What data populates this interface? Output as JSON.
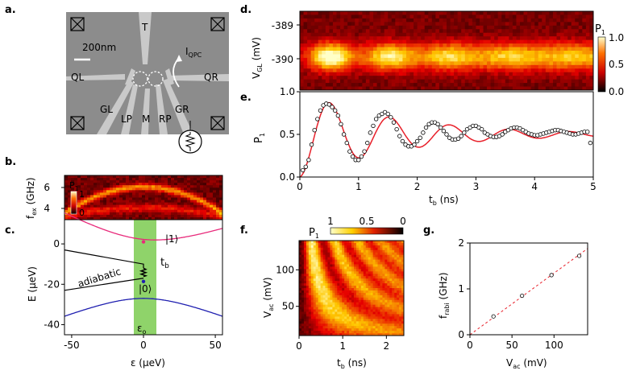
{
  "panels": {
    "a": {
      "label": "a.",
      "scale_bar": "200nm",
      "gate_labels": {
        "T": "T",
        "QL": "QL",
        "QR": "QR",
        "GL": "GL",
        "LP": "LP",
        "M": "M",
        "RP": "RP",
        "GR": "GR"
      },
      "current_label": "I",
      "current_sub": "QPC"
    },
    "b": {
      "label": "b.",
      "ylabel": "f",
      "ylabel_sub": "ex",
      "ylabel_unit": " (GHz)",
      "yticks": [
        "6",
        "4"
      ],
      "cbar_title": "P",
      "cbar_sub": "1",
      "cbar_ticks": [
        "1",
        "0"
      ]
    },
    "c": {
      "label": "c.",
      "ylabel": "E (μeV)",
      "xlabel": "ε (μeV)",
      "yticks": [
        "0",
        "-20",
        "-40"
      ],
      "xticks": [
        "-50",
        "0",
        "50"
      ],
      "state1": "|1⟩",
      "state0": "|0⟩",
      "adiabatic": "adiabatic",
      "tb": "t",
      "tb_sub": "b",
      "eps0": "ε",
      "eps0_sub": "o"
    },
    "d": {
      "label": "d.",
      "ylabel": "V",
      "ylabel_sub": "GL",
      "ylabel_unit": " (mV)",
      "yticks": [
        "-389",
        "-390"
      ],
      "cbar_title": "P",
      "cbar_sub": "1",
      "cbar_ticks": [
        "1.0",
        "0.5",
        "0.0"
      ]
    },
    "e": {
      "label": "e.",
      "ylabel": "P",
      "ylabel_sub": "1",
      "xlabel": "t",
      "xlabel_sub": "b",
      "xlabel_unit": " (ns)",
      "yticks": [
        "1.0",
        "0.5",
        "0.0"
      ],
      "xticks": [
        "0",
        "1",
        "2",
        "3",
        "4",
        "5"
      ]
    },
    "f": {
      "label": "f.",
      "ylabel": "V",
      "ylabel_sub": "ac",
      "ylabel_unit": " (mV)",
      "xlabel": "t",
      "xlabel_sub": "b",
      "xlabel_unit": " (ns)",
      "yticks": [
        "100",
        "50"
      ],
      "xticks": [
        "0",
        "1",
        "2"
      ],
      "cbar_title": "P",
      "cbar_sub": "1",
      "cbar_ticks": [
        "1",
        "0.5",
        "0"
      ]
    },
    "g": {
      "label": "g.",
      "ylabel": "f",
      "ylabel_sub": "rabi",
      "ylabel_unit": " (GHz)",
      "xlabel": "V",
      "xlabel_sub": "ac",
      "xlabel_unit": " (mV)",
      "yticks": [
        "2",
        "1",
        "0"
      ],
      "xticks": [
        "0",
        "50",
        "100"
      ]
    }
  },
  "colors": {
    "hot_dark": "#000000",
    "hot_red": "#cc0000",
    "hot_yellow": "#ffff00",
    "fit": "#e8202a",
    "state1": "#e8297a",
    "state0": "#1f1fb0",
    "band": "#8fd36a",
    "sem_bg": "#8a8a8a"
  },
  "chart_data": [
    {
      "id": "e",
      "type": "scatter",
      "title": "",
      "xlabel": "t_b (ns)",
      "ylabel": "P_1",
      "xlim": [
        0,
        5
      ],
      "ylim": [
        0,
        1
      ],
      "series": [
        {
          "name": "data",
          "x": [
            0.05,
            0.1,
            0.15,
            0.2,
            0.25,
            0.3,
            0.35,
            0.4,
            0.45,
            0.5,
            0.55,
            0.6,
            0.65,
            0.7,
            0.75,
            0.8,
            0.85,
            0.9,
            0.95,
            1.0,
            1.05,
            1.1,
            1.15,
            1.2,
            1.25,
            1.3,
            1.35,
            1.4,
            1.45,
            1.5,
            1.55,
            1.6,
            1.65,
            1.7,
            1.75,
            1.8,
            1.85,
            1.9,
            1.95,
            2.0,
            2.05,
            2.1,
            2.15,
            2.2,
            2.25,
            2.3,
            2.35,
            2.4,
            2.45,
            2.5,
            2.55,
            2.6,
            2.65,
            2.7,
            2.75,
            2.8,
            2.85,
            2.9,
            2.95,
            3.0,
            3.05,
            3.1,
            3.15,
            3.2,
            3.25,
            3.3,
            3.35,
            3.4,
            3.45,
            3.5,
            3.55,
            3.6,
            3.65,
            3.7,
            3.75,
            3.8,
            3.85,
            3.9,
            3.95,
            4.0,
            4.05,
            4.1,
            4.15,
            4.2,
            4.25,
            4.3,
            4.35,
            4.4,
            4.45,
            4.5,
            4.55,
            4.6,
            4.65,
            4.7,
            4.75,
            4.8,
            4.85,
            4.9,
            4.95
          ],
          "y": [
            0.08,
            0.12,
            0.2,
            0.38,
            0.55,
            0.68,
            0.78,
            0.84,
            0.86,
            0.85,
            0.82,
            0.78,
            0.72,
            0.62,
            0.5,
            0.4,
            0.3,
            0.24,
            0.2,
            0.2,
            0.24,
            0.3,
            0.4,
            0.52,
            0.6,
            0.68,
            0.72,
            0.74,
            0.76,
            0.74,
            0.7,
            0.64,
            0.56,
            0.48,
            0.42,
            0.38,
            0.36,
            0.36,
            0.38,
            0.42,
            0.46,
            0.52,
            0.58,
            0.62,
            0.64,
            0.64,
            0.62,
            0.58,
            0.54,
            0.5,
            0.46,
            0.44,
            0.44,
            0.45,
            0.48,
            0.52,
            0.56,
            0.58,
            0.6,
            0.6,
            0.58,
            0.56,
            0.52,
            0.5,
            0.48,
            0.47,
            0.47,
            0.48,
            0.5,
            0.53,
            0.55,
            0.57,
            0.58,
            0.58,
            0.57,
            0.55,
            0.53,
            0.51,
            0.5,
            0.49,
            0.49,
            0.5,
            0.51,
            0.52,
            0.53,
            0.54,
            0.55,
            0.55,
            0.54,
            0.53,
            0.52,
            0.51,
            0.5,
            0.5,
            0.51,
            0.52,
            0.53,
            0.53,
            0.4
          ]
        },
        {
          "name": "fit",
          "fit": {
            "A": 0.5,
            "omega_per_ns": 6.15,
            "decay_ns": 1.7,
            "offset": 0.5
          }
        }
      ]
    },
    {
      "id": "g",
      "type": "scatter",
      "title": "",
      "xlabel": "V_ac (mV)",
      "ylabel": "f_rabi (GHz)",
      "xlim": [
        0,
        140
      ],
      "ylim": [
        0,
        2
      ],
      "series": [
        {
          "name": "data",
          "x": [
            28,
            62,
            97,
            130
          ],
          "y": [
            0.4,
            0.85,
            1.3,
            1.72
          ]
        },
        {
          "name": "linear fit",
          "x": [
            0,
            140
          ],
          "y": [
            0,
            1.88
          ]
        }
      ]
    },
    {
      "id": "c",
      "type": "line",
      "title": "",
      "xlabel": "ε (μeV)",
      "ylabel": "E (μeV)",
      "xlim": [
        -55,
        55
      ],
      "ylim": [
        -45,
        12
      ],
      "series": [
        {
          "name": "|1⟩",
          "half_gap": 18
        },
        {
          "name": "|0⟩",
          "half_gap": 18
        },
        {
          "name": "adiabatic"
        }
      ]
    },
    {
      "id": "d",
      "type": "heatmap",
      "title": "",
      "xlabel": "t_b (ns)",
      "ylabel": "V_GL (mV)",
      "xlim": [
        0,
        5
      ],
      "ylim": [
        -390.6,
        -388.7
      ],
      "colorbar": {
        "label": "P_1",
        "range": [
          0,
          1
        ]
      }
    },
    {
      "id": "f",
      "type": "heatmap",
      "title": "",
      "xlabel": "t_b (ns)",
      "ylabel": "V_ac (mV)",
      "xlim": [
        0,
        2.4
      ],
      "ylim": [
        10,
        140
      ],
      "colorbar": {
        "label": "P_1",
        "range": [
          0,
          1
        ]
      }
    },
    {
      "id": "b",
      "type": "heatmap",
      "title": "",
      "xlabel": "",
      "ylabel": "f_ex (GHz)",
      "ylim": [
        2.5,
        8
      ],
      "colorbar": {
        "label": "P_1",
        "range": [
          0,
          1
        ]
      }
    }
  ]
}
